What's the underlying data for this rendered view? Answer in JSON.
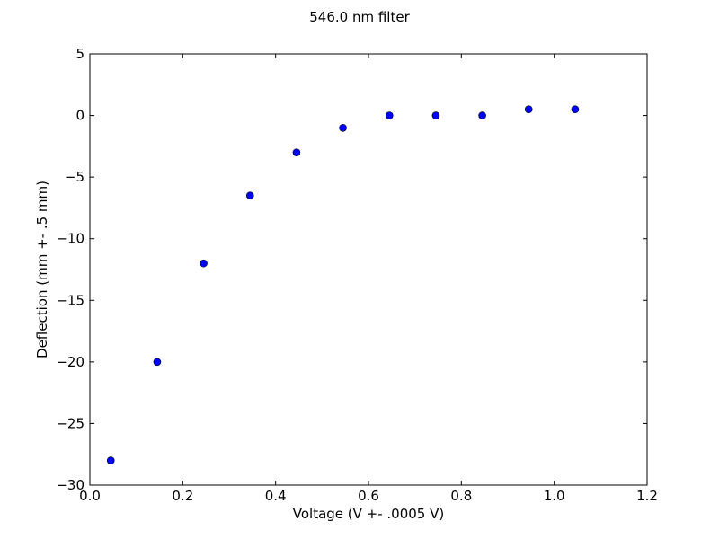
{
  "chart_data": {
    "type": "scatter",
    "title": "546.0 nm filter",
    "xlabel": "Voltage (V +- .0005 V)",
    "ylabel": "Deflection (mm +- .5 mm)",
    "xlim": [
      0.0,
      1.2
    ],
    "ylim": [
      -30,
      5
    ],
    "xticks": [
      0.0,
      0.2,
      0.4,
      0.6,
      0.8,
      1.0,
      1.2
    ],
    "xtick_labels": [
      "0.0",
      "0.2",
      "0.4",
      "0.6",
      "0.8",
      "1.0",
      "1.2"
    ],
    "yticks": [
      5,
      0,
      -5,
      -10,
      -15,
      -20,
      -25,
      -30
    ],
    "ytick_labels": [
      "5",
      "0",
      "−5",
      "−10",
      "−15",
      "−20",
      "−25",
      "−30"
    ],
    "grid": false,
    "marker_color": "#0000ff",
    "points": [
      {
        "x": 0.045,
        "y": -28.0
      },
      {
        "x": 0.145,
        "y": -20.0
      },
      {
        "x": 0.245,
        "y": -12.0
      },
      {
        "x": 0.345,
        "y": -6.5
      },
      {
        "x": 0.445,
        "y": -3.0
      },
      {
        "x": 0.545,
        "y": -1.0
      },
      {
        "x": 0.645,
        "y": 0.0
      },
      {
        "x": 0.745,
        "y": 0.0
      },
      {
        "x": 0.845,
        "y": 0.0
      },
      {
        "x": 0.945,
        "y": 0.5
      },
      {
        "x": 1.045,
        "y": 0.5
      }
    ]
  }
}
